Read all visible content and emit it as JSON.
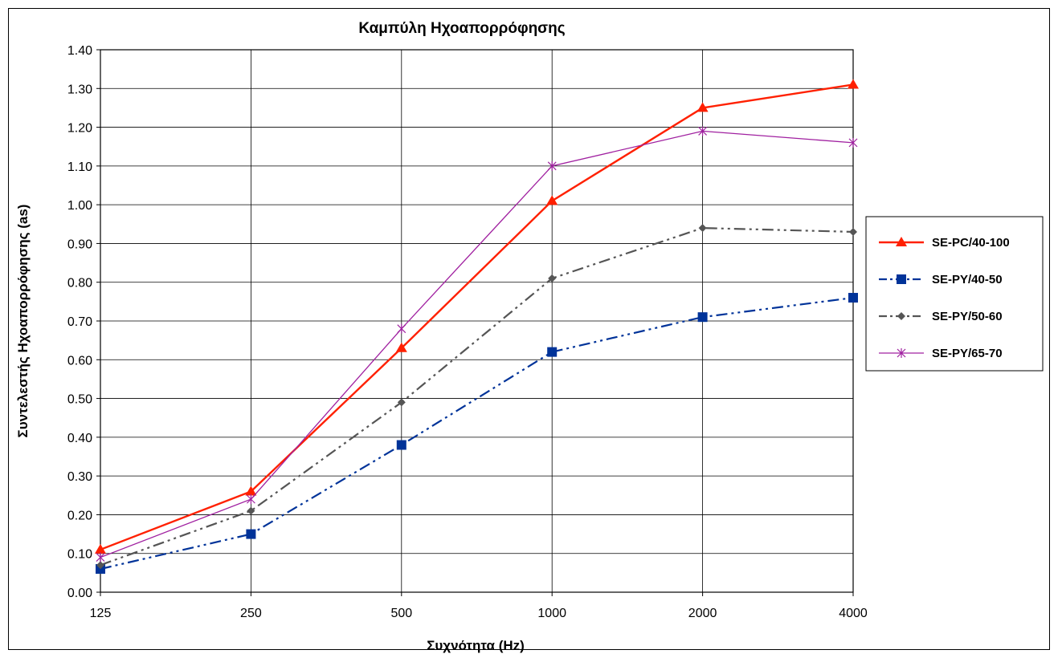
{
  "chart_data": {
    "type": "line",
    "title": "Καμπύλη Ηχοαπορρόφησης",
    "xlabel": "Συχνότητα (Hz)",
    "ylabel": "Συντελεστής Ηχοαπορρόφησης (as)",
    "categories": [
      "125",
      "250",
      "500",
      "1000",
      "2000",
      "4000"
    ],
    "ylim": [
      0,
      1.4
    ],
    "yticks": [
      "0.00",
      "0.10",
      "0.20",
      "0.30",
      "0.40",
      "0.50",
      "0.60",
      "0.70",
      "0.80",
      "0.90",
      "1.00",
      "1.10",
      "1.20",
      "1.30",
      "1.40"
    ],
    "grid": "horizontal and vertical",
    "legend_position": "right",
    "series": [
      {
        "name": "SE-PC/40-100",
        "values": [
          0.11,
          0.26,
          0.63,
          1.01,
          1.25,
          1.31
        ],
        "color": "#ff2000",
        "marker": "triangle",
        "dash": "solid"
      },
      {
        "name": "SE-PY/40-50",
        "values": [
          0.06,
          0.15,
          0.38,
          0.62,
          0.71,
          0.76
        ],
        "color": "#003399",
        "marker": "square",
        "dash": "dash-dot-dot"
      },
      {
        "name": "SE-PY/50-60",
        "values": [
          0.07,
          0.21,
          0.49,
          0.81,
          0.94,
          0.93
        ],
        "color": "#555555",
        "marker": "diamond",
        "dash": "dash-dot-dot"
      },
      {
        "name": "SE-PY/65-70",
        "values": [
          0.09,
          0.24,
          0.68,
          1.1,
          1.19,
          1.16
        ],
        "color": "#a020a0",
        "marker": "star",
        "dash": "solid"
      }
    ]
  }
}
